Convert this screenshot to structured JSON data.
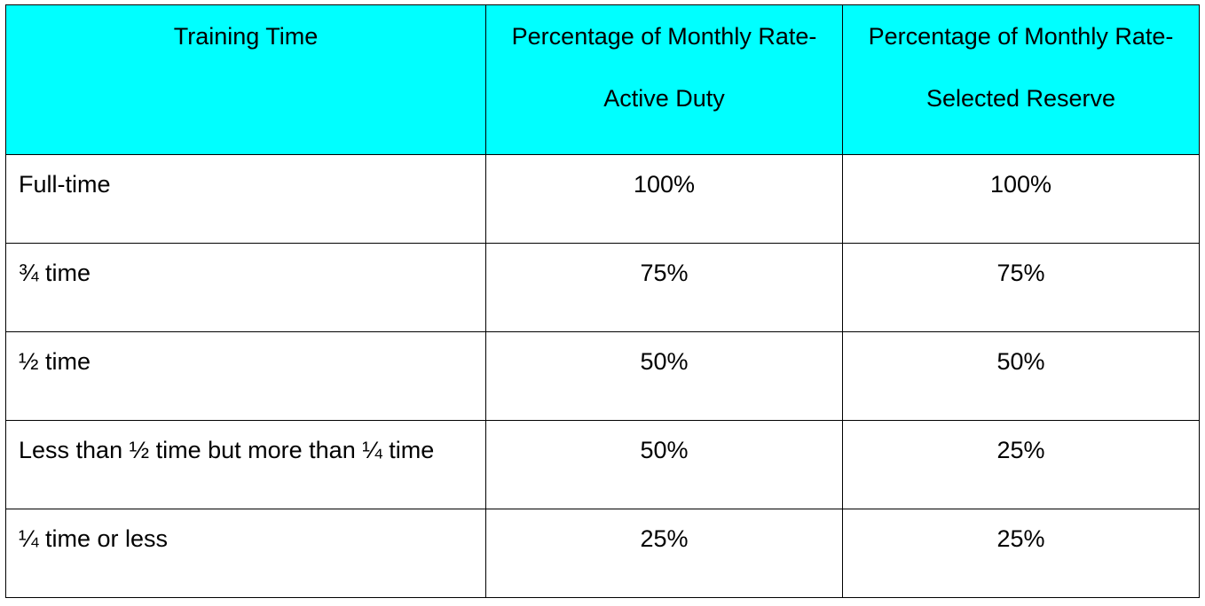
{
  "colors": {
    "header_background": "#00FFFF",
    "border": "#000000",
    "text": "#000000"
  },
  "table": {
    "headers": [
      {
        "lines": [
          "Training Time"
        ]
      },
      {
        "lines": [
          "Percentage of Monthly Rate-",
          "Active Duty"
        ]
      },
      {
        "lines": [
          "Percentage of Monthly Rate-",
          "Selected Reserve"
        ]
      }
    ],
    "rows": [
      {
        "training_time": "Full-time",
        "active_duty": "100%",
        "selected_reserve": "100%"
      },
      {
        "training_time": "¾ time",
        "active_duty": "75%",
        "selected_reserve": "75%"
      },
      {
        "training_time": "½ time",
        "active_duty": "50%",
        "selected_reserve": "50%"
      },
      {
        "training_time": "Less than ½ time but more than ¼ time",
        "active_duty": "50%",
        "selected_reserve": "25%"
      },
      {
        "training_time": "¼ time or less",
        "active_duty": "25%",
        "selected_reserve": "25%"
      }
    ]
  }
}
